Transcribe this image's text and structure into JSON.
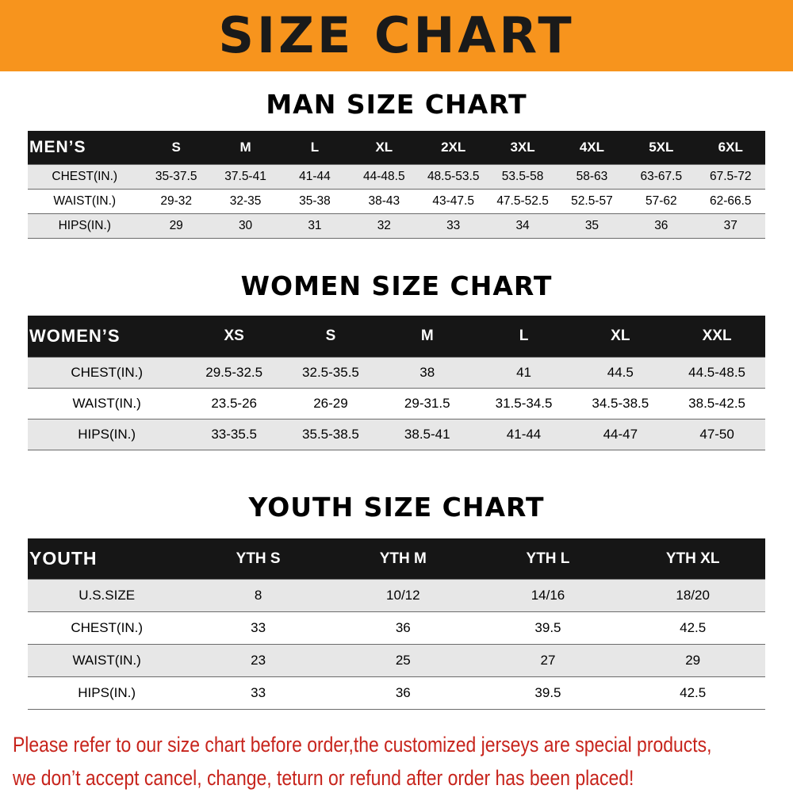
{
  "banner": {
    "title": "SIZE CHART"
  },
  "chart_data": [
    {
      "type": "table",
      "title": "MAN SIZE CHART",
      "corner_label": "MEN’S",
      "columns": [
        "S",
        "M",
        "L",
        "XL",
        "2XL",
        "3XL",
        "4XL",
        "5XL",
        "6XL"
      ],
      "rows": [
        {
          "label": "CHEST(IN.)",
          "values": [
            "35-37.5",
            "37.5-41",
            "41-44",
            "44-48.5",
            "48.5-53.5",
            "53.5-58",
            "58-63",
            "63-67.5",
            "67.5-72"
          ]
        },
        {
          "label": "WAIST(IN.)",
          "values": [
            "29-32",
            "32-35",
            "35-38",
            "38-43",
            "43-47.5",
            "47.5-52.5",
            "52.5-57",
            "57-62",
            "62-66.5"
          ]
        },
        {
          "label": "HIPS(IN.)",
          "values": [
            "29",
            "30",
            "31",
            "32",
            "33",
            "34",
            "35",
            "36",
            "37"
          ]
        }
      ]
    },
    {
      "type": "table",
      "title": "WOMEN SIZE CHART",
      "corner_label": "WOMEN’S",
      "columns": [
        "XS",
        "S",
        "M",
        "L",
        "XL",
        "XXL"
      ],
      "rows": [
        {
          "label": "CHEST(IN.)",
          "values": [
            "29.5-32.5",
            "32.5-35.5",
            "38",
            "41",
            "44.5",
            "44.5-48.5"
          ]
        },
        {
          "label": "WAIST(IN.)",
          "values": [
            "23.5-26",
            "26-29",
            "29-31.5",
            "31.5-34.5",
            "34.5-38.5",
            "38.5-42.5"
          ]
        },
        {
          "label": "HIPS(IN.)",
          "values": [
            "33-35.5",
            "35.5-38.5",
            "38.5-41",
            "41-44",
            "44-47",
            "47-50"
          ]
        }
      ]
    },
    {
      "type": "table",
      "title": "YOUTH SIZE CHART",
      "corner_label": "YOUTH",
      "columns": [
        "YTH S",
        "YTH M",
        "YTH L",
        "YTH XL"
      ],
      "rows": [
        {
          "label": "U.S.SIZE",
          "values": [
            "8",
            "10/12",
            "14/16",
            "18/20"
          ]
        },
        {
          "label": "CHEST(IN.)",
          "values": [
            "33",
            "36",
            "39.5",
            "42.5"
          ]
        },
        {
          "label": "WAIST(IN.)",
          "values": [
            "23",
            "25",
            "27",
            "29"
          ]
        },
        {
          "label": "HIPS(IN.)",
          "values": [
            "33",
            "36",
            "39.5",
            "42.5"
          ]
        }
      ]
    }
  ],
  "footer": {
    "line1": "Please refer to our size chart before order,the customized jerseys are special products,",
    "line2": "we don’t accept cancel, change, teturn or refund after order has been placed!"
  },
  "colors": {
    "banner_bg": "#f7941d",
    "banner_text": "#1a1a1a",
    "table_header_bg": "#161616",
    "table_header_text": "#ffffff",
    "row_alt_bg": "#e7e7e7",
    "footer_text": "#c7241c"
  }
}
